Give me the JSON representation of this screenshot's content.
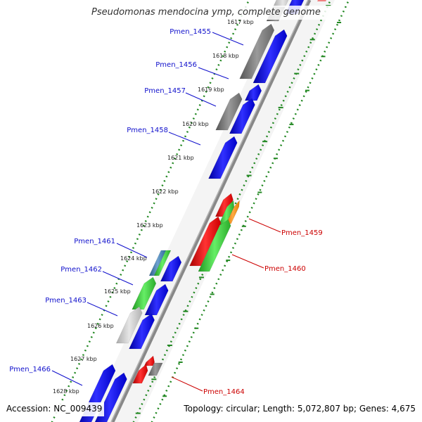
{
  "title": "Pseudomonas mendocina ymp, complete genome",
  "footer": {
    "accession": "Accession: NC_009439",
    "summary": "Topology: circular; Length: 5,072,807 bp; Genes: 4,675"
  },
  "colors": {
    "label_left": "#1010cc",
    "label_right": "#cc0000",
    "gene_blue": "#0000ff",
    "gene_gray": "#7a7a7a",
    "gene_light_gray": "#c8c8c8",
    "gene_red": "#ee1111",
    "gene_green": "#33cc33",
    "gene_orange": "#ff9922",
    "gene_steelblue": "#4682b4",
    "gene_pink": "#f08080",
    "backbone": "#888888",
    "dots": "#228822"
  },
  "ticks": [
    {
      "label": "1617 kbp"
    },
    {
      "label": "1618 kbp"
    },
    {
      "label": "1619 kbp"
    },
    {
      "label": "1620 kbp"
    },
    {
      "label": "1621 kbp"
    },
    {
      "label": "1622 kbp"
    },
    {
      "label": "1623 kbp"
    },
    {
      "label": "1624 kbp"
    },
    {
      "label": "1625 kbp"
    },
    {
      "label": "1626 kbp"
    },
    {
      "label": "1627 kbp"
    },
    {
      "label": "1628 kbp"
    }
  ],
  "gene_labels": [
    {
      "name": "Pmen_1455",
      "side": "left"
    },
    {
      "name": "Pmen_1456",
      "side": "left"
    },
    {
      "name": "Pmen_1457",
      "side": "left"
    },
    {
      "name": "Pmen_1458",
      "side": "left"
    },
    {
      "name": "Pmen_1461",
      "side": "left"
    },
    {
      "name": "Pmen_1462",
      "side": "left"
    },
    {
      "name": "Pmen_1463",
      "side": "left"
    },
    {
      "name": "Pmen_1466",
      "side": "left"
    },
    {
      "name": "Pmen_1459",
      "side": "right"
    },
    {
      "name": "Pmen_1460",
      "side": "right"
    },
    {
      "name": "Pmen_1464",
      "side": "right"
    }
  ]
}
